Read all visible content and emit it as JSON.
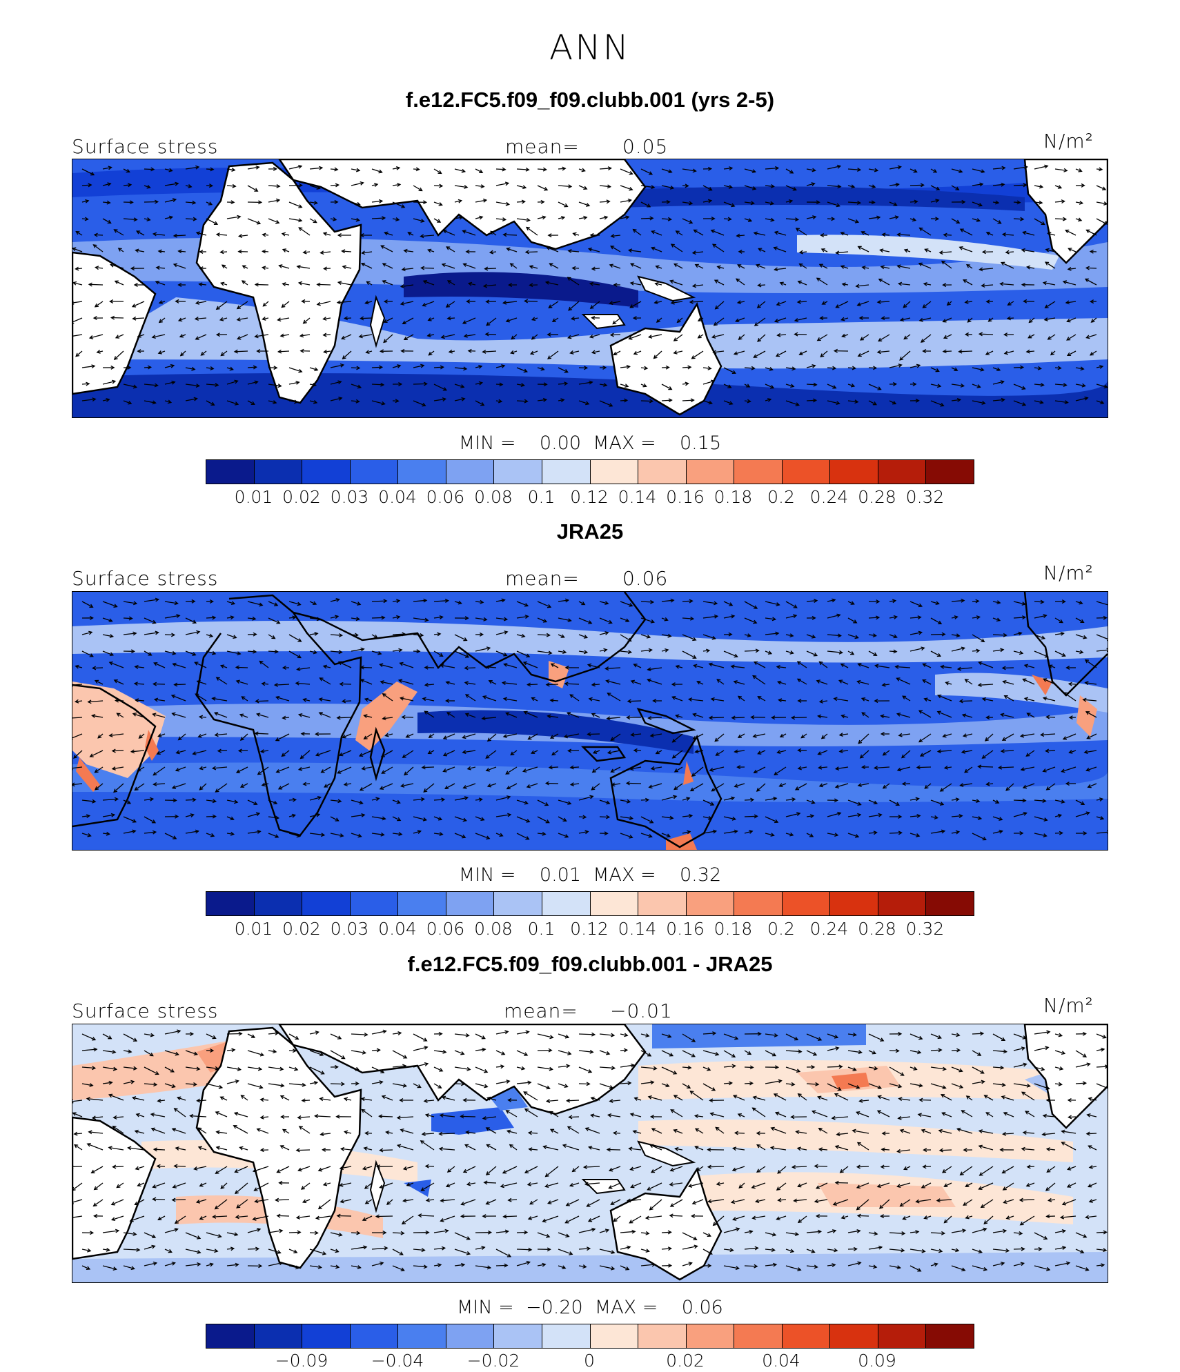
{
  "figure_title": "ANN",
  "units_label": "N/m²",
  "colorbar_colors": [
    "#0a1a8c",
    "#0b2fb0",
    "#1240d6",
    "#2a5ee8",
    "#4a7fef",
    "#7ea2f2",
    "#aac3f5",
    "#d3e2f8",
    "#fde6d6",
    "#fbc6ae",
    "#f9a07e",
    "#f47a52",
    "#ec5228",
    "#d8320f",
    "#b51d0a",
    "#860b04"
  ],
  "chart_data": [
    {
      "type": "heatmap",
      "title": "f.e12.FC5.f09_f09.clubb.001 (yrs 2-5)",
      "variable": "Surface stress",
      "mean_label": "mean=",
      "mean_value": "0.05",
      "units": "N/m²",
      "min_label": "MIN =",
      "min_value": "0.00",
      "max_label": "MAX =",
      "max_value": "0.15",
      "colorbar_ticks": [
        "0.01",
        "0.02",
        "0.03",
        "0.04",
        "0.06",
        "0.08",
        "0.1",
        "0.12",
        "0.14",
        "0.16",
        "0.18",
        "0.2",
        "0.24",
        "0.28",
        "0.32"
      ]
    },
    {
      "type": "heatmap",
      "title": "JRA25",
      "variable": "Surface stress",
      "mean_label": "mean=",
      "mean_value": "0.06",
      "units": "N/m²",
      "min_label": "MIN =",
      "min_value": "0.01",
      "max_label": "MAX =",
      "max_value": "0.32",
      "colorbar_ticks": [
        "0.01",
        "0.02",
        "0.03",
        "0.04",
        "0.06",
        "0.08",
        "0.1",
        "0.12",
        "0.14",
        "0.16",
        "0.18",
        "0.2",
        "0.24",
        "0.28",
        "0.32"
      ]
    },
    {
      "type": "heatmap",
      "title": "f.e12.FC5.f09_f09.clubb.001 - JRA25",
      "variable": "Surface stress",
      "mean_label": "mean=",
      "mean_value": "−0.01",
      "units": "N/m²",
      "min_label": "MIN =",
      "min_value": "−0.20",
      "max_label": "MAX =",
      "max_value": "0.06",
      "colorbar_ticks": [
        "",
        "−0.09",
        "",
        "−0.04",
        "",
        "−0.02",
        "",
        "0",
        "",
        "0.02",
        "",
        "0.04",
        "",
        "0.09",
        ""
      ]
    }
  ]
}
